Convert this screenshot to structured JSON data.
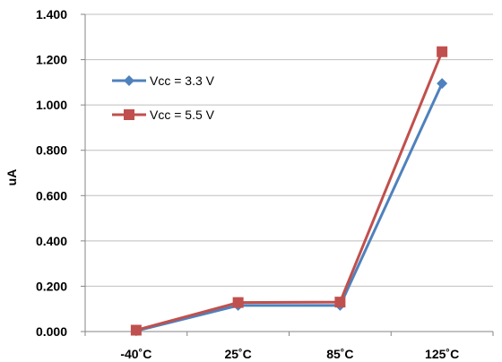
{
  "chart_data": {
    "type": "line",
    "categories": [
      "-40˚C",
      "25˚C",
      "85˚C",
      "125˚C"
    ],
    "ylabel": "uA",
    "ylim": [
      0,
      1.4
    ],
    "yticks": [
      "0.000",
      "0.200",
      "0.400",
      "0.600",
      "0.800",
      "1.000",
      "1.200",
      "1.400"
    ],
    "grid": true,
    "legend_position": "left",
    "series": [
      {
        "name": "Vcc = 3.3 V",
        "color": "#4f81bd",
        "marker": "diamond",
        "values": [
          0.003,
          0.115,
          0.115,
          1.095
        ]
      },
      {
        "name": "Vcc = 5.5 V",
        "color": "#c0504d",
        "marker": "square",
        "values": [
          0.006,
          0.128,
          0.13,
          1.235
        ]
      }
    ]
  }
}
